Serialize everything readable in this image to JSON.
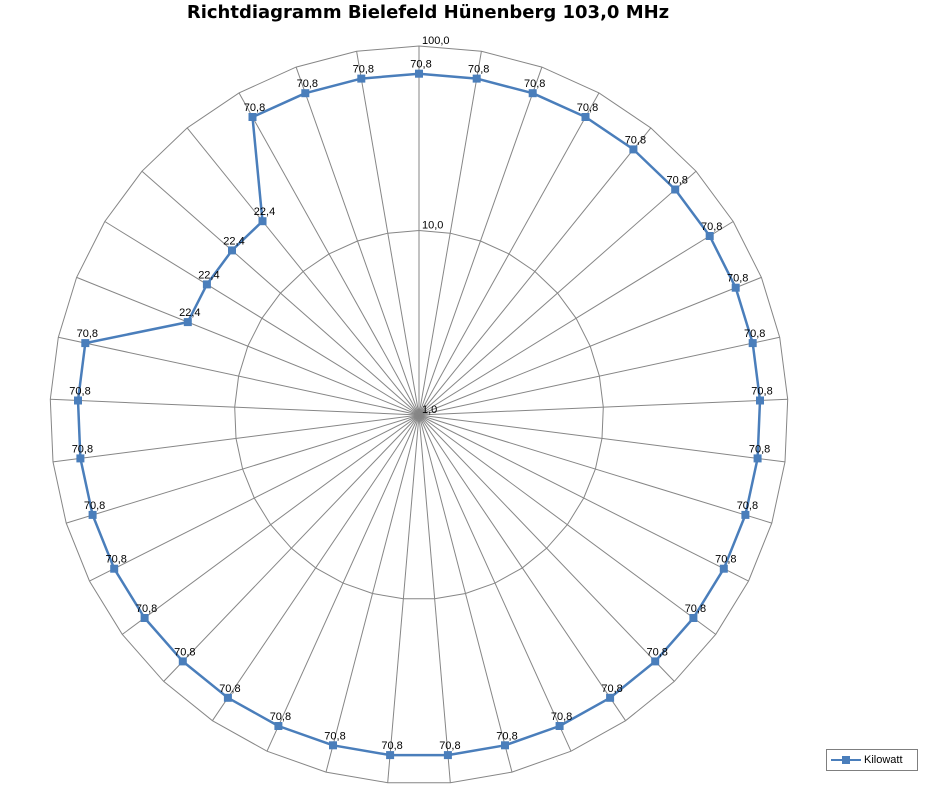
{
  "chart_data": {
    "type": "radar",
    "title": "Richtdiagramm Bielefeld Hünenberg 103,0 MHz",
    "scale": "log",
    "rmin": 1.0,
    "rmax": 100.0,
    "radial_tick_labels": [
      "1,0",
      "10,0",
      "100,0"
    ],
    "radial_tick_values": [
      1,
      10,
      100
    ],
    "grid": true,
    "legend_position": "bottom-right",
    "series": [
      {
        "name": "Kilowatt",
        "color": "#4a7ebb",
        "values": [
          70.8,
          70.8,
          70.8,
          70.8,
          70.8,
          70.8,
          70.8,
          70.8,
          70.8,
          70.8,
          70.8,
          70.8,
          70.8,
          70.8,
          70.8,
          70.8,
          70.8,
          70.8,
          70.8,
          70.8,
          70.8,
          70.8,
          70.8,
          70.8,
          70.8,
          70.8,
          70.8,
          70.8,
          70.8,
          70.8,
          22.4,
          22.4,
          22.4,
          22.4,
          70.8,
          70.8,
          70.8
        ],
        "value_labels": [
          "70,8",
          "70,8",
          "70,8",
          "70,8",
          "70,8",
          "70,8",
          "70,8",
          "70,8",
          "70,8",
          "70,8",
          "70,8",
          "70,8",
          "70,8",
          "70,8",
          "70,8",
          "70,8",
          "70,8",
          "70,8",
          "70,8",
          "70,8",
          "70,8",
          "70,8",
          "70,8",
          "70,8",
          "70,8",
          "70,8",
          "70,8",
          "70,8",
          "70,8",
          "70,8",
          "22,4",
          "22,4",
          "22,4",
          "22,4",
          "70,8",
          "70,8",
          "70,8"
        ]
      }
    ]
  }
}
